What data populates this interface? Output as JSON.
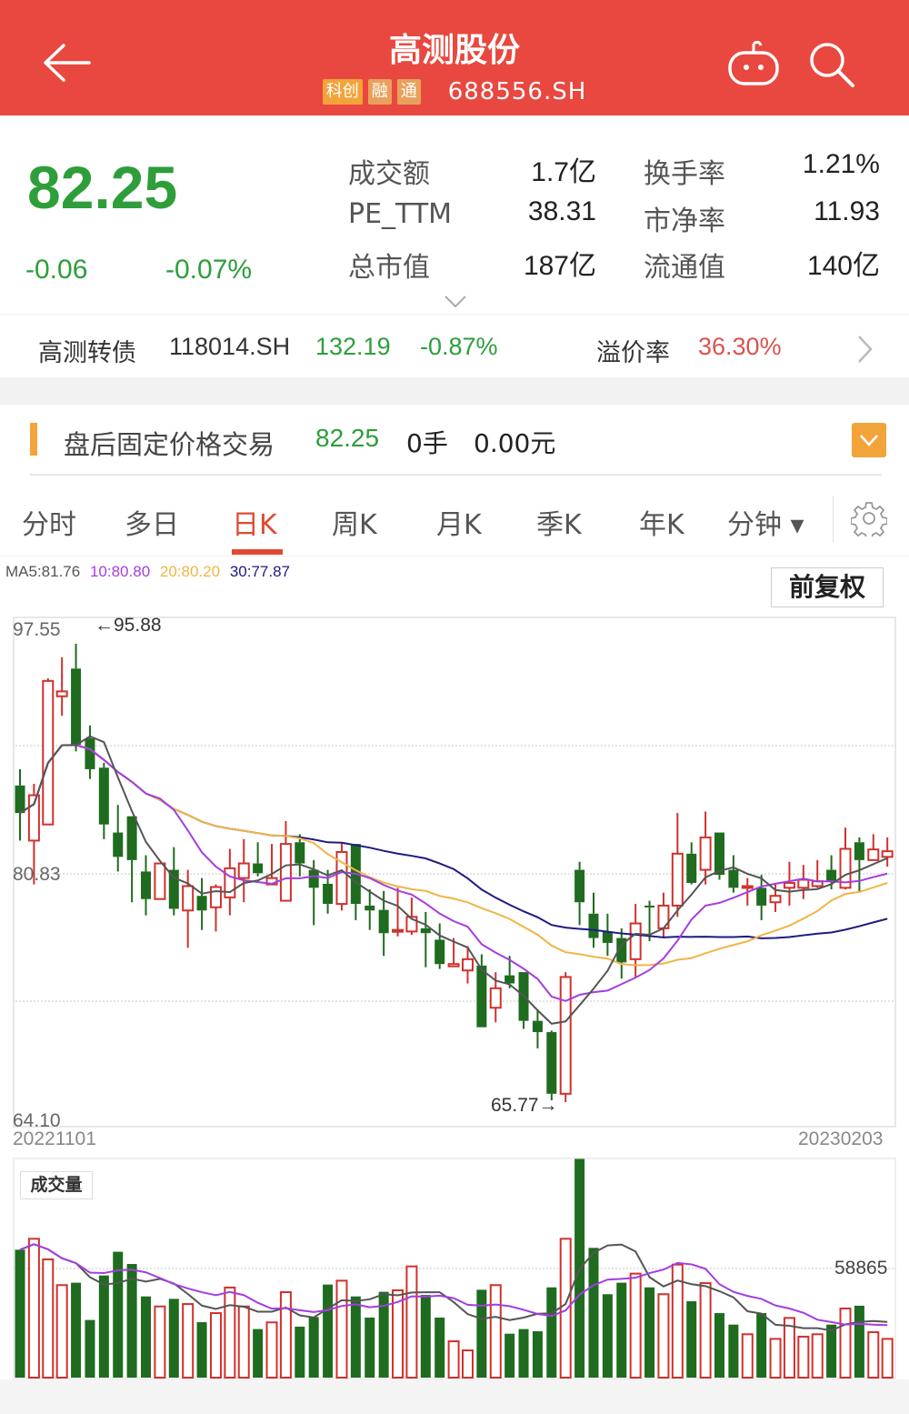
{
  "header": {
    "title": "高测股份",
    "badges": [
      {
        "label": "科创",
        "color": "#f2a43a"
      },
      {
        "label": "融",
        "color": "#e8a15c"
      },
      {
        "label": "通",
        "color": "#e8a15c"
      }
    ],
    "code": "688556.SH",
    "icons": [
      "back-arrow-icon",
      "robot-icon",
      "search-icon"
    ]
  },
  "quote": {
    "price": "82.25",
    "change": "-0.06",
    "change_pct": "-0.07%",
    "color_down": "#2e9e3a",
    "stats": [
      {
        "label": "成交额",
        "value": "1.7亿"
      },
      {
        "label": "换手率",
        "value": "1.21%"
      },
      {
        "label": "PE_TTM",
        "value": "38.31"
      },
      {
        "label": "市净率",
        "value": "11.93"
      },
      {
        "label": "总市值",
        "value": "187亿"
      },
      {
        "label": "流通值",
        "value": "140亿"
      }
    ]
  },
  "bond": {
    "name": "高测转债",
    "code": "118014.SH",
    "price": "132.19",
    "change_pct": "-0.87%",
    "premium_label": "溢价率",
    "premium": "36.30%"
  },
  "after_hours": {
    "label": "盘后固定价格交易",
    "price": "82.25",
    "volume": "0手",
    "amount": "0.00元"
  },
  "tabs": [
    {
      "label": "分时"
    },
    {
      "label": "多日"
    },
    {
      "label": "日K",
      "active": true
    },
    {
      "label": "周K"
    },
    {
      "label": "月K"
    },
    {
      "label": "季K"
    },
    {
      "label": "年K"
    },
    {
      "label": "分钟 ▾"
    }
  ],
  "ma_legend": {
    "ma5": "MA5:81.76",
    "ma10": "10:80.80",
    "ma20": "20:80.20",
    "ma30": "30:77.87"
  },
  "adjust_button": "前复权",
  "chart_data": {
    "type": "candlestick",
    "y_axis_ticks": [
      "97.55",
      "80.83",
      "64.10"
    ],
    "ylim": [
      64.1,
      97.55
    ],
    "x_start": "20221101",
    "x_end": "20230203",
    "high_label": "←95.88",
    "low_label": "65.77→",
    "ma_colors": {
      "ma5": "#555555",
      "ma10": "#a43de0",
      "ma20": "#f0b545",
      "ma30": "#1d1b82"
    },
    "up_color": "#d0312d",
    "down_color": "#1f6b1f",
    "ohlc": [
      [
        86.57,
        87.64,
        82.95,
        84.76
      ],
      [
        82.95,
        86.68,
        80.07,
        85.93
      ],
      [
        84.01,
        93.61,
        84.01,
        93.44
      ],
      [
        92.43,
        94.99,
        91.15,
        92.75
      ],
      [
        94.25,
        95.88,
        88.81,
        89.24
      ],
      [
        89.66,
        90.51,
        87.0,
        87.64
      ],
      [
        87.74,
        88.06,
        83.05,
        84.01
      ],
      [
        83.48,
        85.29,
        80.92,
        81.88
      ],
      [
        84.55,
        84.55,
        78.9,
        81.67
      ],
      [
        80.92,
        81.99,
        78.04,
        79.11
      ],
      [
        79.11,
        81.45,
        79.11,
        81.45
      ],
      [
        81.03,
        82.52,
        78.04,
        78.47
      ],
      [
        78.36,
        81.03,
        75.91,
        79.96
      ],
      [
        79.32,
        80.49,
        77.08,
        78.36
      ],
      [
        78.57,
        80.07,
        76.98,
        79.9
      ],
      [
        79.22,
        82.41,
        78.04,
        81.13
      ],
      [
        80.49,
        83.05,
        78.9,
        81.45
      ],
      [
        81.45,
        82.84,
        80.6,
        80.81
      ],
      [
        80.07,
        82.73,
        80.07,
        80.49
      ],
      [
        79.0,
        84.23,
        79.0,
        82.73
      ],
      [
        82.84,
        83.37,
        80.6,
        81.45
      ],
      [
        81.03,
        81.67,
        77.4,
        79.85
      ],
      [
        80.11,
        81.03,
        78.15,
        78.79
      ],
      [
        78.79,
        82.84,
        78.36,
        82.2
      ],
      [
        82.73,
        82.73,
        77.72,
        78.79
      ],
      [
        78.68,
        79.75,
        77.08,
        78.36
      ],
      [
        78.4,
        79.64,
        75.38,
        76.87
      ],
      [
        76.98,
        79.85,
        76.66,
        77.08
      ],
      [
        76.98,
        79.21,
        76.76,
        77.94
      ],
      [
        77.19,
        78.26,
        74.63,
        76.87
      ],
      [
        76.44,
        77.51,
        74.52,
        74.84
      ],
      [
        74.69,
        76.55,
        74.69,
        74.84
      ],
      [
        74.42,
        76.02,
        73.56,
        75.16
      ],
      [
        74.74,
        75.48,
        70.69,
        70.69
      ],
      [
        71.97,
        74.31,
        71.01,
        73.25
      ],
      [
        74.1,
        75.38,
        73.25,
        73.57
      ],
      [
        74.31,
        74.31,
        70.58,
        71.11
      ],
      [
        71.11,
        71.86,
        69.3,
        70.37
      ],
      [
        70.37,
        70.47,
        65.89,
        66.32
      ],
      [
        66.32,
        74.31,
        65.77,
        73.99
      ],
      [
        81.03,
        81.56,
        77.4,
        78.9
      ],
      [
        78.15,
        79.53,
        75.91,
        76.55
      ],
      [
        76.98,
        78.15,
        75.38,
        76.23
      ],
      [
        76.55,
        77.19,
        73.88,
        74.95
      ],
      [
        75.16,
        78.79,
        73.99,
        77.51
      ],
      [
        78.68,
        79.0,
        76.34,
        78.57
      ],
      [
        77.19,
        79.53,
        76.55,
        78.68
      ],
      [
        78.68,
        84.76,
        77.94,
        82.09
      ],
      [
        82.09,
        82.84,
        80.07,
        80.17
      ],
      [
        81.03,
        84.86,
        80.07,
        83.16
      ],
      [
        83.48,
        83.48,
        80.38,
        80.7
      ],
      [
        81.03,
        81.99,
        79.53,
        79.85
      ],
      [
        79.85,
        80.49,
        78.68,
        79.96
      ],
      [
        79.85,
        80.7,
        77.72,
        78.68
      ],
      [
        78.9,
        80.07,
        78.26,
        79.32
      ],
      [
        79.85,
        81.56,
        78.68,
        80.17
      ],
      [
        79.85,
        81.35,
        79.11,
        80.38
      ],
      [
        79.96,
        81.67,
        79.85,
        80.28
      ],
      [
        81.03,
        81.99,
        79.75,
        80.28
      ],
      [
        79.85,
        83.8,
        79.75,
        82.41
      ],
      [
        82.84,
        83.16,
        79.53,
        81.67
      ],
      [
        81.67,
        83.37,
        81.67,
        82.37
      ],
      [
        81.88,
        83.16,
        81.24,
        82.25
      ]
    ],
    "volume": {
      "label": "成交量",
      "tick": "58865",
      "values": [
        69000,
        74900,
        63800,
        49900,
        51200,
        31100,
        55100,
        67900,
        61300,
        43800,
        38400,
        42500,
        39700,
        29900,
        34800,
        48600,
        38400,
        26200,
        29800,
        46100,
        27500,
        32700,
        50200,
        52300,
        43800,
        32400,
        46300,
        47100,
        60000,
        44600,
        32400,
        19600,
        14700,
        47400,
        49900,
        23700,
        26200,
        25000,
        48700,
        74900,
        118000,
        70000,
        45000,
        51200,
        56100,
        48700,
        45000,
        61000,
        41200,
        51000,
        34800,
        28600,
        23400,
        34800,
        20900,
        32200,
        22100,
        23400,
        28600,
        37300,
        38800,
        24500,
        20900
      ]
    }
  }
}
